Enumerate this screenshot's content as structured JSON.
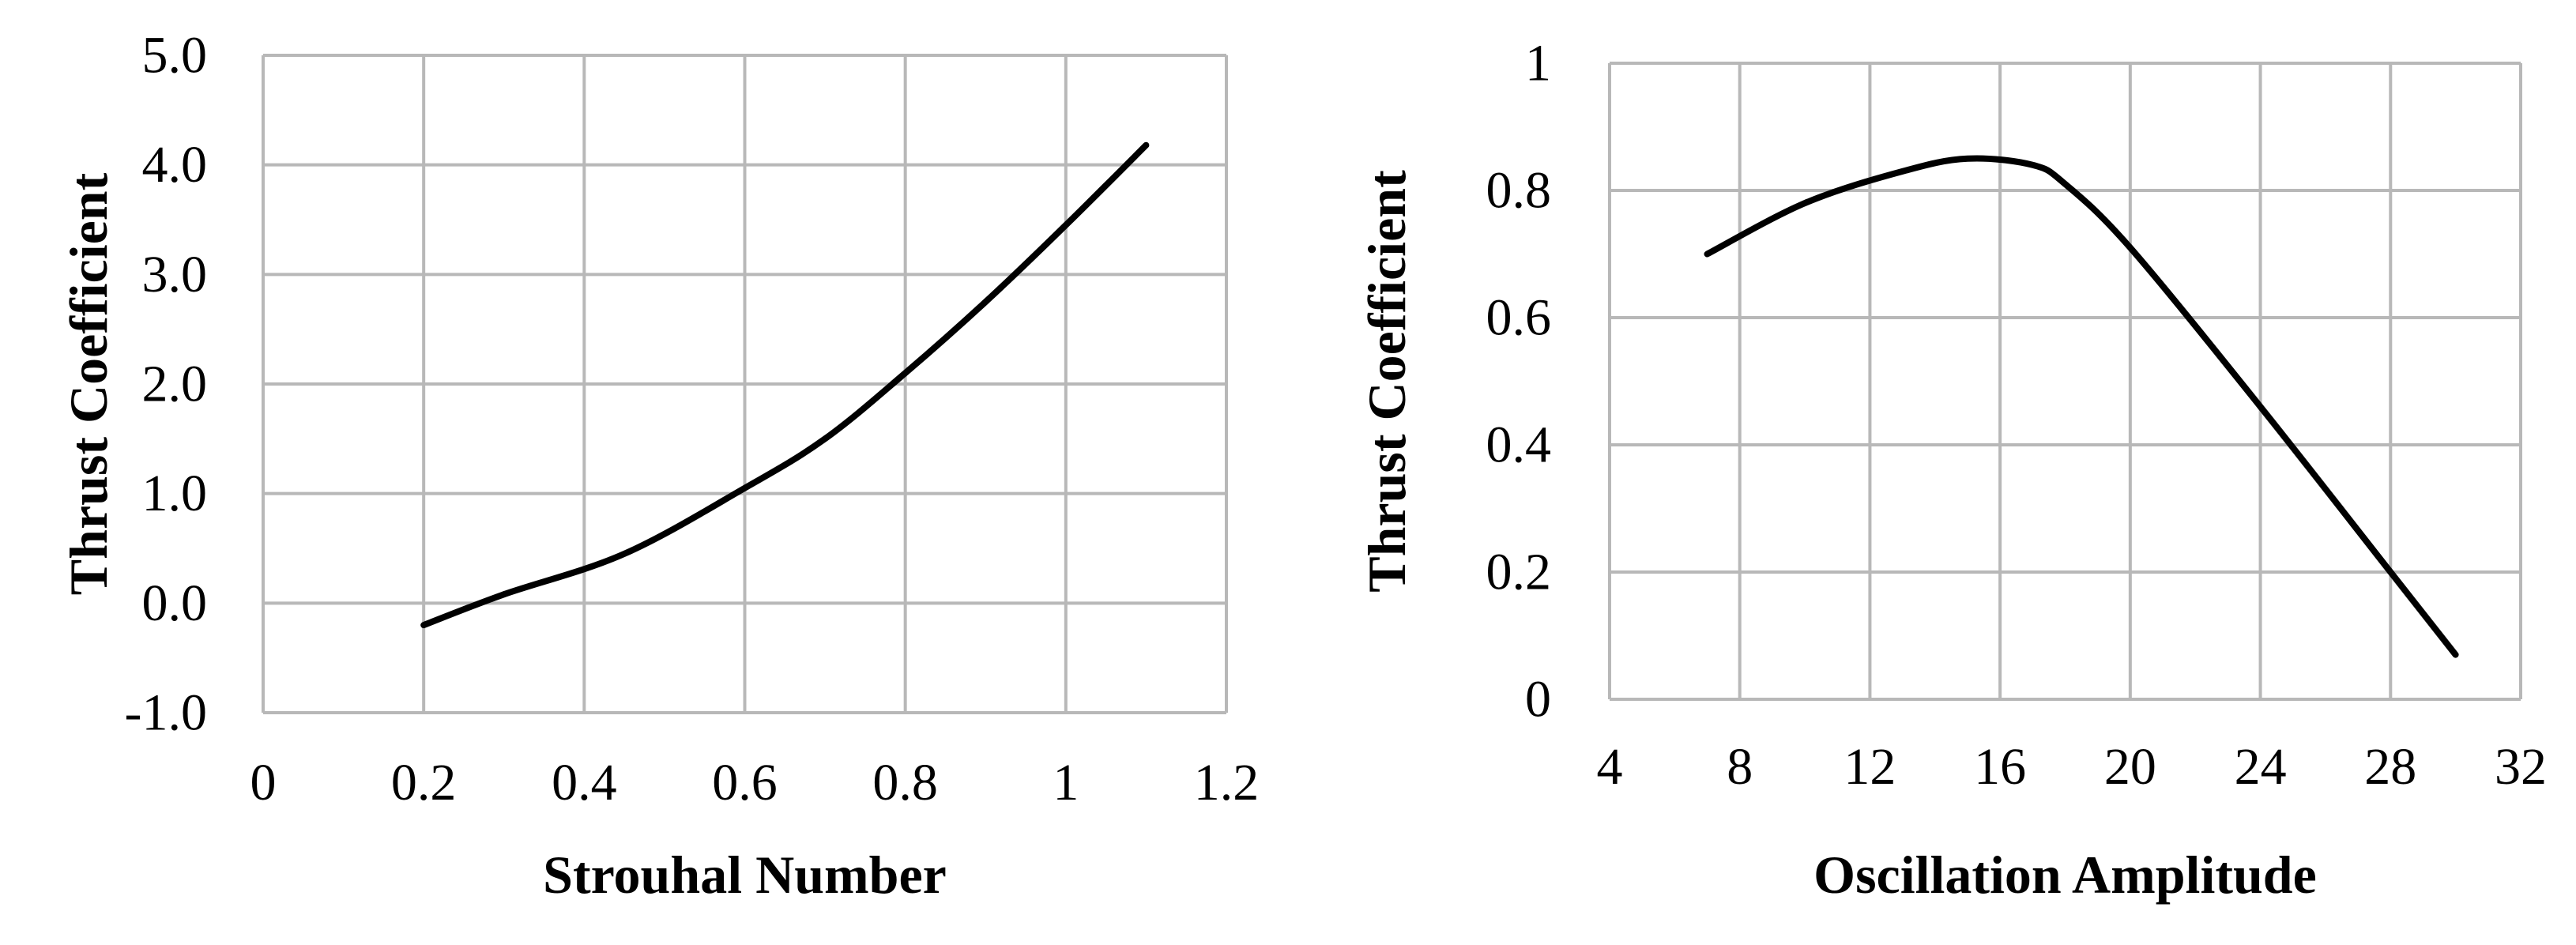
{
  "chart_data": [
    {
      "type": "line",
      "title": "",
      "xlabel": "Strouhal Number",
      "ylabel": "Thrust Coefficient",
      "xlim": [
        0,
        1.2
      ],
      "ylim": [
        -1.0,
        5.0
      ],
      "x_ticks": [
        "0",
        "0.2",
        "0.4",
        "0.6",
        "0.8",
        "1",
        "1.2"
      ],
      "y_ticks": [
        "-1.0",
        "0.0",
        "1.0",
        "2.0",
        "3.0",
        "4.0",
        "5.0"
      ],
      "grid": true,
      "legend": "none",
      "line_color": "#000000",
      "grid_color": "#b8b8b8",
      "series": [
        {
          "x": [
            0.2,
            0.3,
            0.45,
            0.6,
            0.7,
            0.8,
            0.9,
            1.0,
            1.1
          ],
          "y": [
            -0.2,
            0.08,
            0.45,
            1.05,
            1.5,
            2.1,
            2.75,
            3.45,
            4.18
          ]
        }
      ]
    },
    {
      "type": "line",
      "title": "",
      "xlabel": "Oscillation Amplitude",
      "ylabel": "Thrust Coefficient",
      "xlim": [
        4,
        32
      ],
      "ylim": [
        0,
        1
      ],
      "x_ticks": [
        "4",
        "8",
        "12",
        "16",
        "20",
        "24",
        "28",
        "32"
      ],
      "y_ticks": [
        "0",
        "0.2",
        "0.4",
        "0.6",
        "0.8",
        "1"
      ],
      "grid": true,
      "legend": "none",
      "line_color": "#000000",
      "grid_color": "#b8b8b8",
      "series": [
        {
          "x": [
            7,
            10,
            13,
            15,
            17,
            18,
            20,
            24,
            28,
            30
          ],
          "y": [
            0.7,
            0.78,
            0.83,
            0.85,
            0.84,
            0.81,
            0.71,
            0.46,
            0.2,
            0.07
          ]
        }
      ]
    }
  ]
}
